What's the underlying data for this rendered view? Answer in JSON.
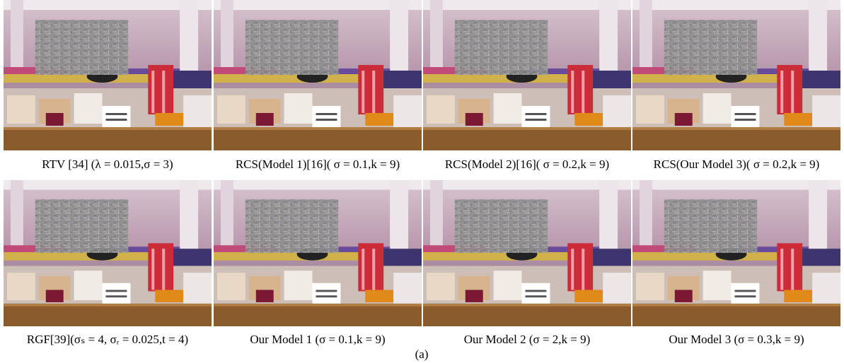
{
  "figure": {
    "panels": [
      {
        "caption": "RTV [34] (λ = 0.015,σ = 3)"
      },
      {
        "caption": "RCS(Model 1)[16]( σ = 0.1,k = 9)"
      },
      {
        "caption": "RCS(Model 2)[16]( σ = 0.2,k = 9)"
      },
      {
        "caption": "RCS(Our Model 3)( σ = 0.2,k = 9)"
      },
      {
        "caption": "RGF[39](σₛ = 4, σᵣ = 0.025,t = 4)"
      },
      {
        "caption": "Our Model 1 (σ = 0.1,k = 9)"
      },
      {
        "caption": "Our Model 2 (σ = 2,k = 9)"
      },
      {
        "caption": "Our Model 3 (σ = 0.3,k = 9)"
      }
    ],
    "label": "(a)"
  }
}
